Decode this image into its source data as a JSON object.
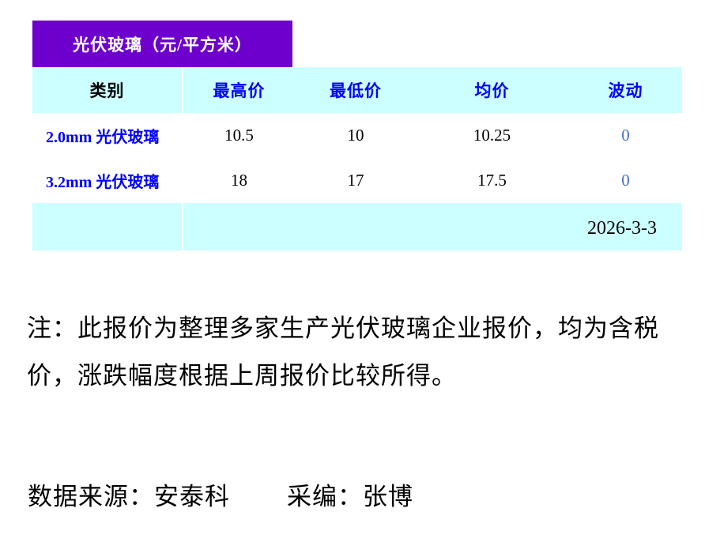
{
  "title": {
    "text": "光伏玻璃（元/平方米）"
  },
  "table": {
    "columns": [
      "类别",
      "最高价",
      "最低价",
      "均价",
      "波动"
    ],
    "rows": [
      {
        "category": "2.0mm 光伏玻璃",
        "high": "10.5",
        "low": "10",
        "avg": "10.25",
        "change": "0"
      },
      {
        "category": "3.2mm 光伏玻璃",
        "high": "18",
        "low": "17",
        "avg": "17.5",
        "change": "0"
      }
    ],
    "date": "2026-3-3"
  },
  "note": {
    "lines": [
      "注：此报价为整理多家生产光伏玻璃企业报价，均为含税",
      "价，涨跌幅度根据上周报价比较所得。"
    ],
    "full_text": "注：此报价为整理多家生产光伏玻璃企业报价，均为含税价，涨跌幅度根据上周报价比较所得。"
  },
  "footer": {
    "source": "数据来源：安泰科",
    "editor": "采编：张博"
  },
  "colors": {
    "accent_purple": "#6E00CE",
    "table_bg_cyan": "#CCFFFF",
    "header_text_blue": "#0000FF",
    "category_text_blue": "#0000FF",
    "change_value_blue": "#4472C4",
    "title_text": "#FFFFFF",
    "body_text": "#000000"
  }
}
